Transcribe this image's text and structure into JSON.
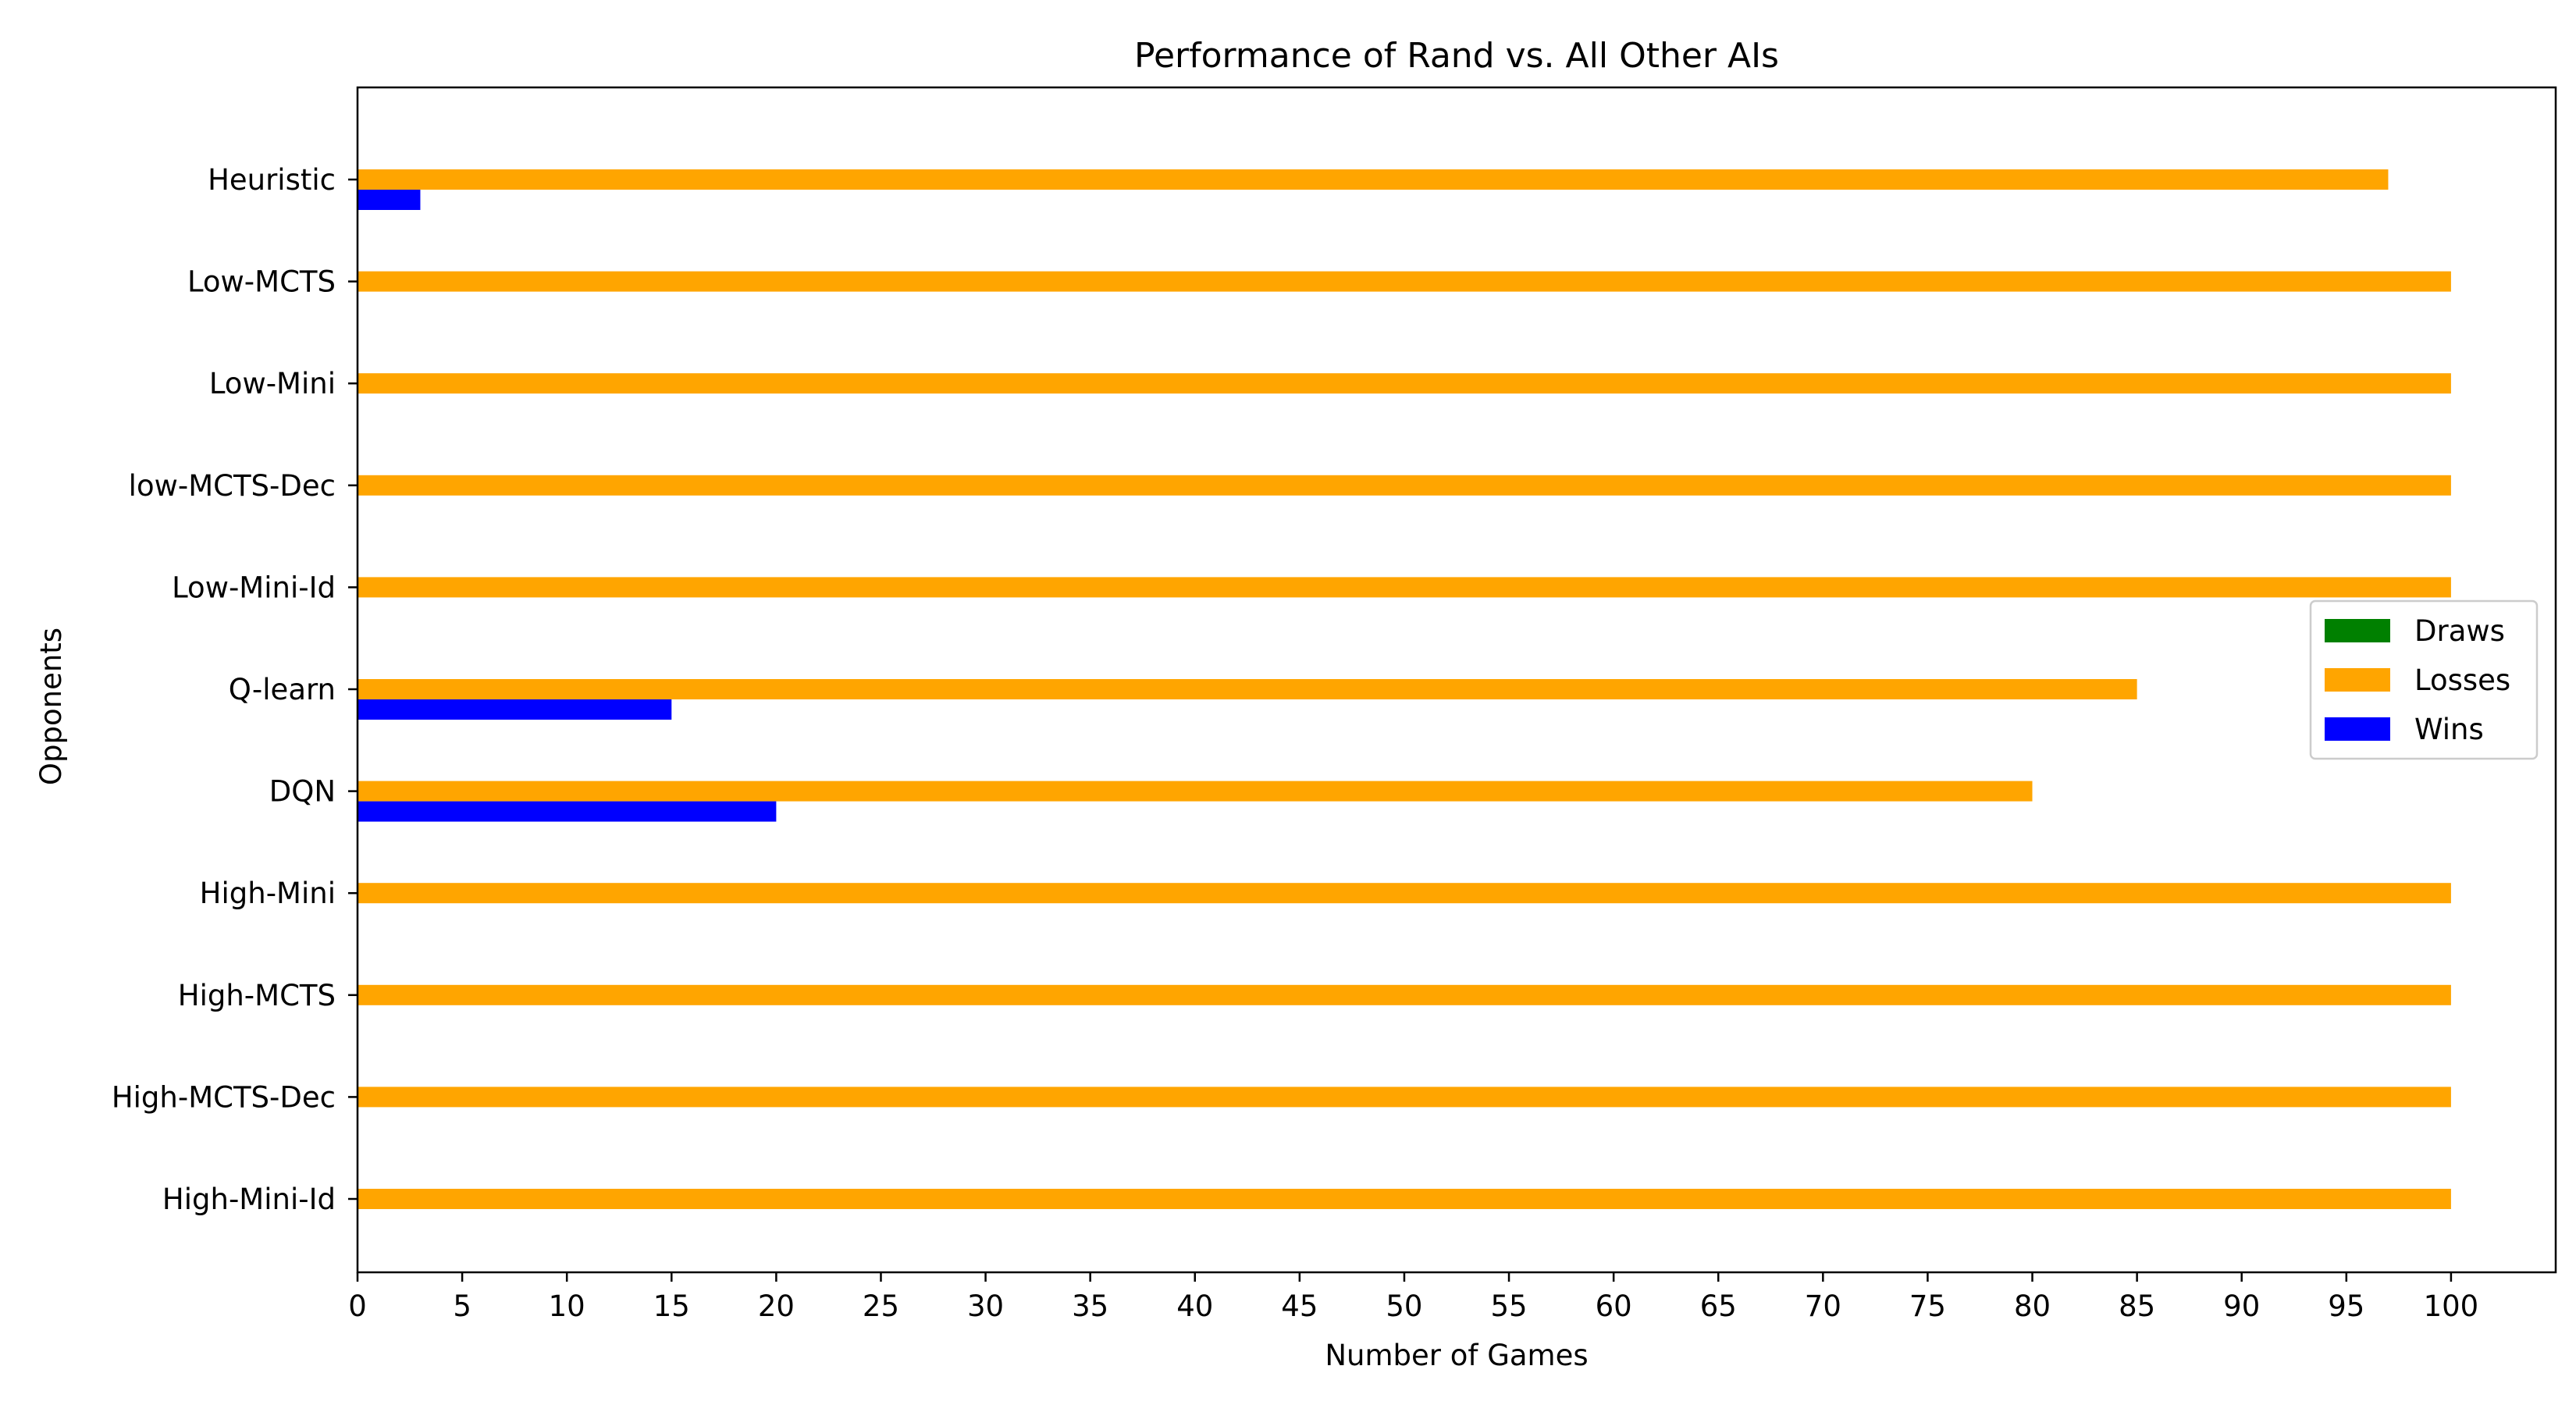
{
  "chart_data": {
    "type": "bar",
    "orientation": "horizontal",
    "title": "Performance of Rand vs. All Other AIs",
    "xlabel": "Number of Games",
    "ylabel": "Opponents",
    "categories": [
      "Heuristic",
      "Low-MCTS",
      "Low-Mini",
      "low-MCTS-Dec",
      "Low-Mini-Id",
      "Q-learn",
      "DQN",
      "High-Mini",
      "High-MCTS",
      "High-MCTS-Dec",
      "High-Mini-Id"
    ],
    "series": [
      {
        "name": "Draws",
        "color": "#008000",
        "values": [
          0,
          0,
          0,
          0,
          0,
          0,
          0,
          0,
          0,
          0,
          0
        ]
      },
      {
        "name": "Losses",
        "color": "#ffa500",
        "values": [
          97,
          100,
          100,
          100,
          100,
          85,
          80,
          100,
          100,
          100,
          100
        ]
      },
      {
        "name": "Wins",
        "color": "#0000ff",
        "values": [
          3,
          0,
          0,
          0,
          0,
          15,
          20,
          0,
          0,
          0,
          0
        ]
      }
    ],
    "xlim": [
      0,
      105
    ],
    "xticks": [
      0,
      5,
      10,
      15,
      20,
      25,
      30,
      35,
      40,
      45,
      50,
      55,
      60,
      65,
      70,
      75,
      80,
      85,
      90,
      95,
      100
    ],
    "grid": false,
    "legend_position": "center-right"
  }
}
